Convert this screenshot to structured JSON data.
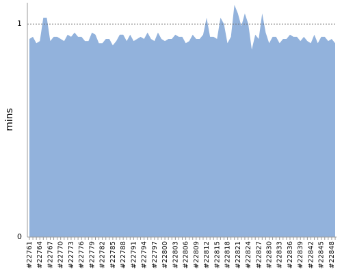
{
  "chart_data": {
    "type": "area",
    "y_label": "mins",
    "color": "#92b2dc",
    "categories": [
      "#22761",
      null,
      null,
      "#22764",
      null,
      null,
      "#22767",
      null,
      null,
      "#22770",
      null,
      null,
      "#22773",
      null,
      null,
      "#22776",
      null,
      null,
      "#22779",
      null,
      null,
      "#22782",
      null,
      null,
      "#22785",
      null,
      null,
      "#22788",
      null,
      null,
      "#22791",
      null,
      null,
      "#22794",
      null,
      null,
      "#22797",
      null,
      null,
      "#22800",
      null,
      null,
      "#22803",
      null,
      null,
      "#22806",
      null,
      null,
      "#22809",
      null,
      null,
      "#22812",
      null,
      null,
      "#22815",
      null,
      null,
      "#22818",
      null,
      null,
      "#22821",
      null,
      null,
      "#22824",
      null,
      null,
      "#22827",
      null,
      null,
      "#22830",
      null,
      null,
      "#22833",
      null,
      null,
      "#22836",
      null,
      null,
      "#22839",
      null,
      null,
      "#22842",
      null,
      null,
      "#22845",
      null,
      null,
      "#22848",
      null
    ],
    "values": [
      0.93,
      0.94,
      0.91,
      0.92,
      1.03,
      1.03,
      0.92,
      0.94,
      0.94,
      0.93,
      0.92,
      0.95,
      0.94,
      0.96,
      0.94,
      0.94,
      0.92,
      0.92,
      0.96,
      0.95,
      0.91,
      0.91,
      0.93,
      0.93,
      0.9,
      0.92,
      0.95,
      0.95,
      0.92,
      0.95,
      0.92,
      0.93,
      0.94,
      0.93,
      0.96,
      0.93,
      0.92,
      0.96,
      0.93,
      0.92,
      0.93,
      0.93,
      0.95,
      0.94,
      0.94,
      0.91,
      0.92,
      0.95,
      0.93,
      0.93,
      0.95,
      1.03,
      0.94,
      0.94,
      0.93,
      1.03,
      1.0,
      0.91,
      0.94,
      1.09,
      1.05,
      0.99,
      1.05,
      1.0,
      0.88,
      0.95,
      0.93,
      1.05,
      0.96,
      0.91,
      0.94,
      0.94,
      0.91,
      0.93,
      0.93,
      0.95,
      0.94,
      0.94,
      0.92,
      0.94,
      0.92,
      0.91,
      0.95,
      0.91,
      0.94,
      0.94,
      0.92,
      0.93,
      0.91
    ],
    "ylim": [
      0,
      1.1
    ],
    "yticks": [
      0,
      1
    ],
    "grid": true
  }
}
